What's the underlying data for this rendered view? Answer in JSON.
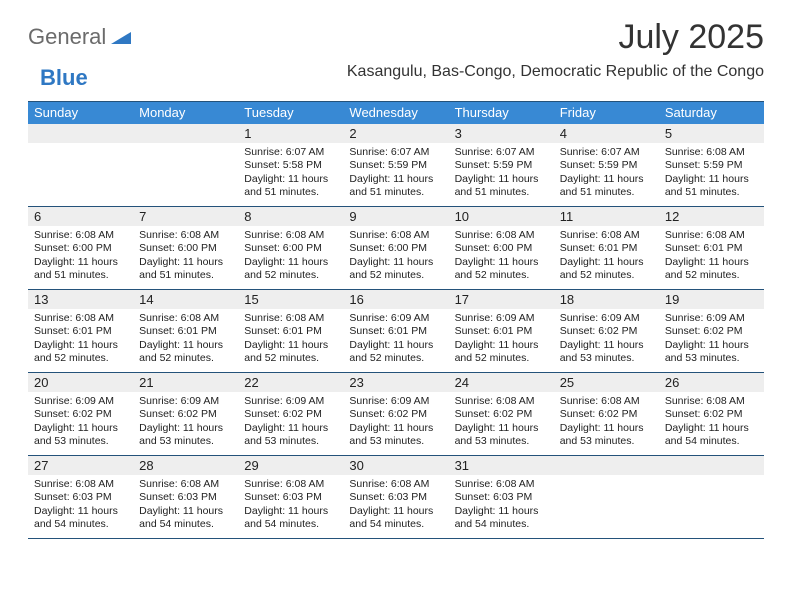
{
  "brand": {
    "word1": "General",
    "word2": "Blue",
    "color1": "#6b6b6b",
    "color2": "#2f78c3"
  },
  "title": "July 2025",
  "location": "Kasangulu, Bas-Congo, Democratic Republic of the Congo",
  "header_bg": "#3889d4",
  "rule_color": "#24527a",
  "daynum_bg": "#eeeeee",
  "page_bg": "#ffffff",
  "dow": [
    "Sunday",
    "Monday",
    "Tuesday",
    "Wednesday",
    "Thursday",
    "Friday",
    "Saturday"
  ],
  "weeks": [
    [
      {
        "n": "",
        "sr": "",
        "ss": "",
        "dl": ""
      },
      {
        "n": "",
        "sr": "",
        "ss": "",
        "dl": ""
      },
      {
        "n": "1",
        "sr": "Sunrise: 6:07 AM",
        "ss": "Sunset: 5:58 PM",
        "dl": "Daylight: 11 hours and 51 minutes."
      },
      {
        "n": "2",
        "sr": "Sunrise: 6:07 AM",
        "ss": "Sunset: 5:59 PM",
        "dl": "Daylight: 11 hours and 51 minutes."
      },
      {
        "n": "3",
        "sr": "Sunrise: 6:07 AM",
        "ss": "Sunset: 5:59 PM",
        "dl": "Daylight: 11 hours and 51 minutes."
      },
      {
        "n": "4",
        "sr": "Sunrise: 6:07 AM",
        "ss": "Sunset: 5:59 PM",
        "dl": "Daylight: 11 hours and 51 minutes."
      },
      {
        "n": "5",
        "sr": "Sunrise: 6:08 AM",
        "ss": "Sunset: 5:59 PM",
        "dl": "Daylight: 11 hours and 51 minutes."
      }
    ],
    [
      {
        "n": "6",
        "sr": "Sunrise: 6:08 AM",
        "ss": "Sunset: 6:00 PM",
        "dl": "Daylight: 11 hours and 51 minutes."
      },
      {
        "n": "7",
        "sr": "Sunrise: 6:08 AM",
        "ss": "Sunset: 6:00 PM",
        "dl": "Daylight: 11 hours and 51 minutes."
      },
      {
        "n": "8",
        "sr": "Sunrise: 6:08 AM",
        "ss": "Sunset: 6:00 PM",
        "dl": "Daylight: 11 hours and 52 minutes."
      },
      {
        "n": "9",
        "sr": "Sunrise: 6:08 AM",
        "ss": "Sunset: 6:00 PM",
        "dl": "Daylight: 11 hours and 52 minutes."
      },
      {
        "n": "10",
        "sr": "Sunrise: 6:08 AM",
        "ss": "Sunset: 6:00 PM",
        "dl": "Daylight: 11 hours and 52 minutes."
      },
      {
        "n": "11",
        "sr": "Sunrise: 6:08 AM",
        "ss": "Sunset: 6:01 PM",
        "dl": "Daylight: 11 hours and 52 minutes."
      },
      {
        "n": "12",
        "sr": "Sunrise: 6:08 AM",
        "ss": "Sunset: 6:01 PM",
        "dl": "Daylight: 11 hours and 52 minutes."
      }
    ],
    [
      {
        "n": "13",
        "sr": "Sunrise: 6:08 AM",
        "ss": "Sunset: 6:01 PM",
        "dl": "Daylight: 11 hours and 52 minutes."
      },
      {
        "n": "14",
        "sr": "Sunrise: 6:08 AM",
        "ss": "Sunset: 6:01 PM",
        "dl": "Daylight: 11 hours and 52 minutes."
      },
      {
        "n": "15",
        "sr": "Sunrise: 6:08 AM",
        "ss": "Sunset: 6:01 PM",
        "dl": "Daylight: 11 hours and 52 minutes."
      },
      {
        "n": "16",
        "sr": "Sunrise: 6:09 AM",
        "ss": "Sunset: 6:01 PM",
        "dl": "Daylight: 11 hours and 52 minutes."
      },
      {
        "n": "17",
        "sr": "Sunrise: 6:09 AM",
        "ss": "Sunset: 6:01 PM",
        "dl": "Daylight: 11 hours and 52 minutes."
      },
      {
        "n": "18",
        "sr": "Sunrise: 6:09 AM",
        "ss": "Sunset: 6:02 PM",
        "dl": "Daylight: 11 hours and 53 minutes."
      },
      {
        "n": "19",
        "sr": "Sunrise: 6:09 AM",
        "ss": "Sunset: 6:02 PM",
        "dl": "Daylight: 11 hours and 53 minutes."
      }
    ],
    [
      {
        "n": "20",
        "sr": "Sunrise: 6:09 AM",
        "ss": "Sunset: 6:02 PM",
        "dl": "Daylight: 11 hours and 53 minutes."
      },
      {
        "n": "21",
        "sr": "Sunrise: 6:09 AM",
        "ss": "Sunset: 6:02 PM",
        "dl": "Daylight: 11 hours and 53 minutes."
      },
      {
        "n": "22",
        "sr": "Sunrise: 6:09 AM",
        "ss": "Sunset: 6:02 PM",
        "dl": "Daylight: 11 hours and 53 minutes."
      },
      {
        "n": "23",
        "sr": "Sunrise: 6:09 AM",
        "ss": "Sunset: 6:02 PM",
        "dl": "Daylight: 11 hours and 53 minutes."
      },
      {
        "n": "24",
        "sr": "Sunrise: 6:08 AM",
        "ss": "Sunset: 6:02 PM",
        "dl": "Daylight: 11 hours and 53 minutes."
      },
      {
        "n": "25",
        "sr": "Sunrise: 6:08 AM",
        "ss": "Sunset: 6:02 PM",
        "dl": "Daylight: 11 hours and 53 minutes."
      },
      {
        "n": "26",
        "sr": "Sunrise: 6:08 AM",
        "ss": "Sunset: 6:02 PM",
        "dl": "Daylight: 11 hours and 54 minutes."
      }
    ],
    [
      {
        "n": "27",
        "sr": "Sunrise: 6:08 AM",
        "ss": "Sunset: 6:03 PM",
        "dl": "Daylight: 11 hours and 54 minutes."
      },
      {
        "n": "28",
        "sr": "Sunrise: 6:08 AM",
        "ss": "Sunset: 6:03 PM",
        "dl": "Daylight: 11 hours and 54 minutes."
      },
      {
        "n": "29",
        "sr": "Sunrise: 6:08 AM",
        "ss": "Sunset: 6:03 PM",
        "dl": "Daylight: 11 hours and 54 minutes."
      },
      {
        "n": "30",
        "sr": "Sunrise: 6:08 AM",
        "ss": "Sunset: 6:03 PM",
        "dl": "Daylight: 11 hours and 54 minutes."
      },
      {
        "n": "31",
        "sr": "Sunrise: 6:08 AM",
        "ss": "Sunset: 6:03 PM",
        "dl": "Daylight: 11 hours and 54 minutes."
      },
      {
        "n": "",
        "sr": "",
        "ss": "",
        "dl": ""
      },
      {
        "n": "",
        "sr": "",
        "ss": "",
        "dl": ""
      }
    ]
  ]
}
